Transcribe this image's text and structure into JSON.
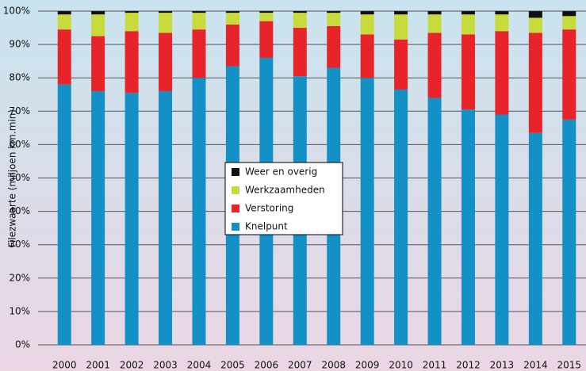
{
  "chart_data": {
    "type": "stacked_bar",
    "y_label": "Filezwaarte (miljoen km.min)",
    "categories": [
      "2000",
      "2001",
      "2002",
      "2003",
      "2004",
      "2005",
      "2006",
      "2007",
      "2008",
      "2009",
      "2010",
      "2011",
      "2012",
      "2013",
      "2014",
      "2015"
    ],
    "series": [
      {
        "name": "Knelpunt",
        "color": "#1390c6",
        "values": [
          78,
          76,
          75.5,
          76,
          80,
          83.5,
          86,
          80.5,
          83,
          80,
          76.5,
          74,
          70.5,
          69,
          63.5,
          67.5
        ]
      },
      {
        "name": "Verstoring",
        "color": "#e8232a",
        "values": [
          16.5,
          16.5,
          18.5,
          17.5,
          14.5,
          12.5,
          11,
          14.5,
          12.5,
          13,
          15,
          19.5,
          22.5,
          25,
          30,
          27
        ]
      },
      {
        "name": "Werkzaamheden",
        "color": "#c8da3c",
        "values": [
          4.5,
          6.5,
          5.5,
          6,
          5,
          3.5,
          2.5,
          4.5,
          4,
          6,
          7.5,
          5.5,
          6,
          5,
          4.5,
          4
        ]
      },
      {
        "name": "Weer en overig",
        "color": "#111111",
        "values": [
          1,
          1,
          0.5,
          0.5,
          0.5,
          0.5,
          0.5,
          0.5,
          0.5,
          1,
          1,
          1,
          1,
          1,
          2,
          1.5
        ]
      }
    ],
    "ylim": [
      0,
      100
    ],
    "yticks": [
      {
        "value": 0,
        "label": "0%"
      },
      {
        "value": 10,
        "label": "10%"
      },
      {
        "value": 20,
        "label": "20%"
      },
      {
        "value": 30,
        "label": "30%"
      },
      {
        "value": 40,
        "label": "40%"
      },
      {
        "value": 50,
        "label": "50%"
      },
      {
        "value": 60,
        "label": "60%"
      },
      {
        "value": 70,
        "label": "70%"
      },
      {
        "value": 80,
        "label": "80%"
      },
      {
        "value": 90,
        "label": "90%"
      },
      {
        "value": 100,
        "label": "100%"
      }
    ],
    "grid": true,
    "legend": "center"
  }
}
